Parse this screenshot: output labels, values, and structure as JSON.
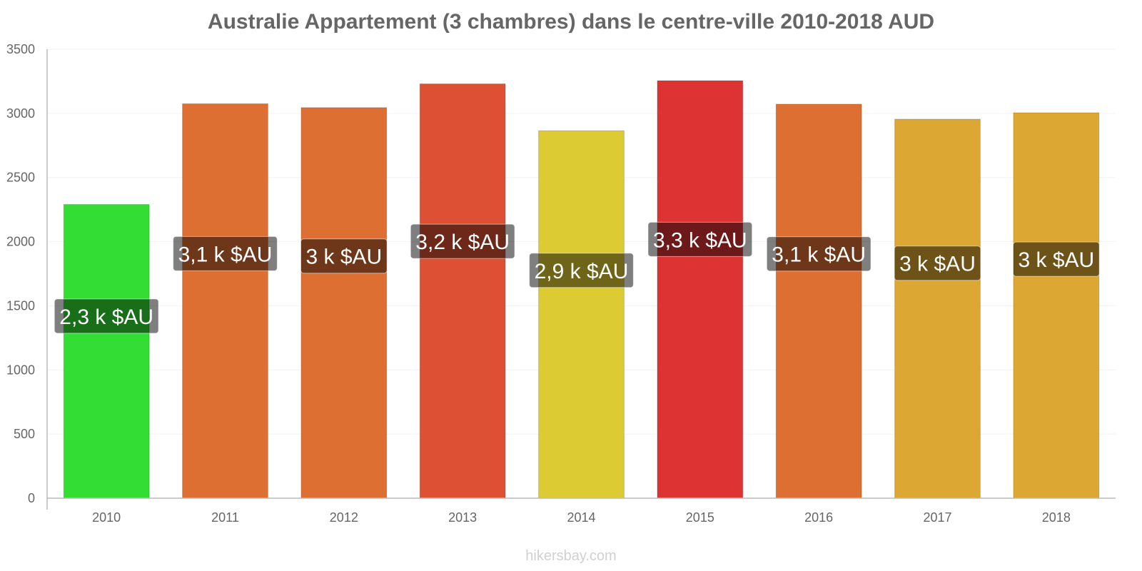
{
  "chart_data": {
    "type": "bar",
    "title": "Australie Appartement (3 chambres) dans le centre-ville 2010-2018 AUD",
    "categories": [
      "2010",
      "2011",
      "2012",
      "2013",
      "2014",
      "2015",
      "2016",
      "2017",
      "2018"
    ],
    "values": [
      2290,
      3075,
      3045,
      3230,
      2865,
      3255,
      3072,
      2955,
      3005
    ],
    "data_labels": [
      "2,3 k $AU",
      "3,1 k $AU",
      "3 k $AU",
      "3,2 k $AU",
      "2,9 k $AU",
      "3,3 k $AU",
      "3,1 k $AU",
      "3 k $AU",
      "3 k $AU"
    ],
    "colors": [
      "#33dd33",
      "#dd6f33",
      "#dd6f33",
      "#dd5033",
      "#ddcb33",
      "#dd3333",
      "#dd6f33",
      "#dda733",
      "#dda733"
    ],
    "yticks": [
      0,
      500,
      1000,
      1500,
      2000,
      2500,
      3000,
      3500
    ],
    "ylim": [
      0,
      3500
    ],
    "grid": true,
    "xlabel": "",
    "ylabel": ""
  },
  "credit": "hikersbay.com"
}
